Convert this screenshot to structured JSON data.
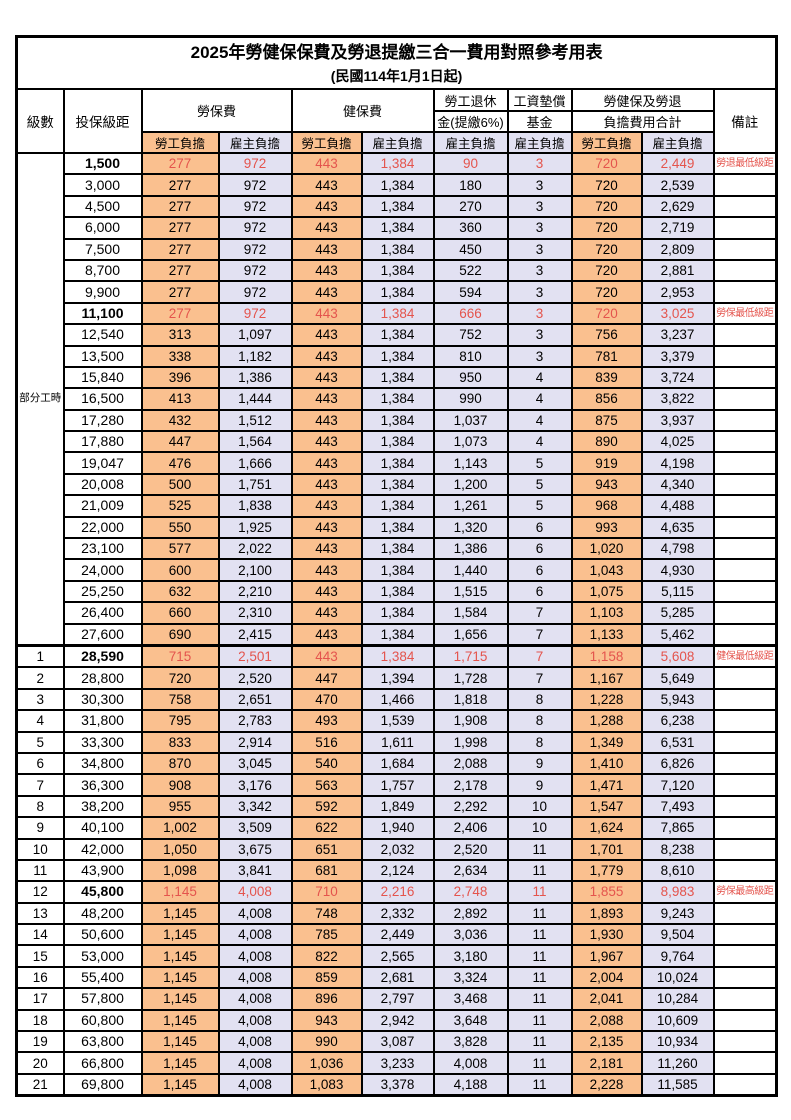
{
  "title": "2025年勞健保保費及勞退提繳三合一費用對照參考用表",
  "subtitle": "(民國114年1月1日起)",
  "colors": {
    "employee_bg": "#FAC08F",
    "employer_bg": "#E2E1F2",
    "highlight_text": "#E4544D",
    "border": "#000000"
  },
  "header": {
    "level": "級數",
    "salary": "投保級距",
    "labor_fee": "勞保費",
    "health_fee": "健保費",
    "pension_l1": "勞工退休",
    "pension_l2": "金(提繳6%)",
    "fund_l1": "工資墊償",
    "fund_l2": "基金",
    "total_l1": "勞健保及勞退",
    "total_l2": "負擔費用合計",
    "remark": "備註",
    "employee": "勞工負擔",
    "employer": "雇主負擔"
  },
  "part_time": {
    "label": "部分工時",
    "rowspan": 23
  },
  "rows": [
    {
      "level": "",
      "salary": "1,500",
      "li_emp": "277",
      "li_er": "972",
      "hi_emp": "443",
      "hi_er": "1,384",
      "pension": "90",
      "fund": "3",
      "tot_emp": "720",
      "tot_er": "2,449",
      "remark": "勞退最低級距",
      "red": true
    },
    {
      "level": "",
      "salary": "3,000",
      "li_emp": "277",
      "li_er": "972",
      "hi_emp": "443",
      "hi_er": "1,384",
      "pension": "180",
      "fund": "3",
      "tot_emp": "720",
      "tot_er": "2,539",
      "remark": "",
      "red": false
    },
    {
      "level": "",
      "salary": "4,500",
      "li_emp": "277",
      "li_er": "972",
      "hi_emp": "443",
      "hi_er": "1,384",
      "pension": "270",
      "fund": "3",
      "tot_emp": "720",
      "tot_er": "2,629",
      "remark": "",
      "red": false
    },
    {
      "level": "",
      "salary": "6,000",
      "li_emp": "277",
      "li_er": "972",
      "hi_emp": "443",
      "hi_er": "1,384",
      "pension": "360",
      "fund": "3",
      "tot_emp": "720",
      "tot_er": "2,719",
      "remark": "",
      "red": false
    },
    {
      "level": "",
      "salary": "7,500",
      "li_emp": "277",
      "li_er": "972",
      "hi_emp": "443",
      "hi_er": "1,384",
      "pension": "450",
      "fund": "3",
      "tot_emp": "720",
      "tot_er": "2,809",
      "remark": "",
      "red": false
    },
    {
      "level": "",
      "salary": "8,700",
      "li_emp": "277",
      "li_er": "972",
      "hi_emp": "443",
      "hi_er": "1,384",
      "pension": "522",
      "fund": "3",
      "tot_emp": "720",
      "tot_er": "2,881",
      "remark": "",
      "red": false
    },
    {
      "level": "",
      "salary": "9,900",
      "li_emp": "277",
      "li_er": "972",
      "hi_emp": "443",
      "hi_er": "1,384",
      "pension": "594",
      "fund": "3",
      "tot_emp": "720",
      "tot_er": "2,953",
      "remark": "",
      "red": false
    },
    {
      "level": "",
      "salary": "11,100",
      "li_emp": "277",
      "li_er": "972",
      "hi_emp": "443",
      "hi_er": "1,384",
      "pension": "666",
      "fund": "3",
      "tot_emp": "720",
      "tot_er": "3,025",
      "remark": "勞保最低級距",
      "red": true
    },
    {
      "level": "",
      "salary": "12,540",
      "li_emp": "313",
      "li_er": "1,097",
      "hi_emp": "443",
      "hi_er": "1,384",
      "pension": "752",
      "fund": "3",
      "tot_emp": "756",
      "tot_er": "3,237",
      "remark": "",
      "red": false
    },
    {
      "level": "",
      "salary": "13,500",
      "li_emp": "338",
      "li_er": "1,182",
      "hi_emp": "443",
      "hi_er": "1,384",
      "pension": "810",
      "fund": "3",
      "tot_emp": "781",
      "tot_er": "3,379",
      "remark": "",
      "red": false
    },
    {
      "level": "",
      "salary": "15,840",
      "li_emp": "396",
      "li_er": "1,386",
      "hi_emp": "443",
      "hi_er": "1,384",
      "pension": "950",
      "fund": "4",
      "tot_emp": "839",
      "tot_er": "3,724",
      "remark": "",
      "red": false
    },
    {
      "level": "",
      "salary": "16,500",
      "li_emp": "413",
      "li_er": "1,444",
      "hi_emp": "443",
      "hi_er": "1,384",
      "pension": "990",
      "fund": "4",
      "tot_emp": "856",
      "tot_er": "3,822",
      "remark": "",
      "red": false
    },
    {
      "level": "",
      "salary": "17,280",
      "li_emp": "432",
      "li_er": "1,512",
      "hi_emp": "443",
      "hi_er": "1,384",
      "pension": "1,037",
      "fund": "4",
      "tot_emp": "875",
      "tot_er": "3,937",
      "remark": "",
      "red": false
    },
    {
      "level": "",
      "salary": "17,880",
      "li_emp": "447",
      "li_er": "1,564",
      "hi_emp": "443",
      "hi_er": "1,384",
      "pension": "1,073",
      "fund": "4",
      "tot_emp": "890",
      "tot_er": "4,025",
      "remark": "",
      "red": false
    },
    {
      "level": "",
      "salary": "19,047",
      "li_emp": "476",
      "li_er": "1,666",
      "hi_emp": "443",
      "hi_er": "1,384",
      "pension": "1,143",
      "fund": "5",
      "tot_emp": "919",
      "tot_er": "4,198",
      "remark": "",
      "red": false
    },
    {
      "level": "",
      "salary": "20,008",
      "li_emp": "500",
      "li_er": "1,751",
      "hi_emp": "443",
      "hi_er": "1,384",
      "pension": "1,200",
      "fund": "5",
      "tot_emp": "943",
      "tot_er": "4,340",
      "remark": "",
      "red": false
    },
    {
      "level": "",
      "salary": "21,009",
      "li_emp": "525",
      "li_er": "1,838",
      "hi_emp": "443",
      "hi_er": "1,384",
      "pension": "1,261",
      "fund": "5",
      "tot_emp": "968",
      "tot_er": "4,488",
      "remark": "",
      "red": false
    },
    {
      "level": "",
      "salary": "22,000",
      "li_emp": "550",
      "li_er": "1,925",
      "hi_emp": "443",
      "hi_er": "1,384",
      "pension": "1,320",
      "fund": "6",
      "tot_emp": "993",
      "tot_er": "4,635",
      "remark": "",
      "red": false
    },
    {
      "level": "",
      "salary": "23,100",
      "li_emp": "577",
      "li_er": "2,022",
      "hi_emp": "443",
      "hi_er": "1,384",
      "pension": "1,386",
      "fund": "6",
      "tot_emp": "1,020",
      "tot_er": "4,798",
      "remark": "",
      "red": false
    },
    {
      "level": "",
      "salary": "24,000",
      "li_emp": "600",
      "li_er": "2,100",
      "hi_emp": "443",
      "hi_er": "1,384",
      "pension": "1,440",
      "fund": "6",
      "tot_emp": "1,043",
      "tot_er": "4,930",
      "remark": "",
      "red": false
    },
    {
      "level": "",
      "salary": "25,250",
      "li_emp": "632",
      "li_er": "2,210",
      "hi_emp": "443",
      "hi_er": "1,384",
      "pension": "1,515",
      "fund": "6",
      "tot_emp": "1,075",
      "tot_er": "5,115",
      "remark": "",
      "red": false
    },
    {
      "level": "",
      "salary": "26,400",
      "li_emp": "660",
      "li_er": "2,310",
      "hi_emp": "443",
      "hi_er": "1,384",
      "pension": "1,584",
      "fund": "7",
      "tot_emp": "1,103",
      "tot_er": "5,285",
      "remark": "",
      "red": false
    },
    {
      "level": "",
      "salary": "27,600",
      "li_emp": "690",
      "li_er": "2,415",
      "hi_emp": "443",
      "hi_er": "1,384",
      "pension": "1,656",
      "fund": "7",
      "tot_emp": "1,133",
      "tot_er": "5,462",
      "remark": "",
      "red": false
    },
    {
      "level": "1",
      "salary": "28,590",
      "li_emp": "715",
      "li_er": "2,501",
      "hi_emp": "443",
      "hi_er": "1,384",
      "pension": "1,715",
      "fund": "7",
      "tot_emp": "1,158",
      "tot_er": "5,608",
      "remark": "健保最低級距",
      "red": true,
      "sect": true
    },
    {
      "level": "2",
      "salary": "28,800",
      "li_emp": "720",
      "li_er": "2,520",
      "hi_emp": "447",
      "hi_er": "1,394",
      "pension": "1,728",
      "fund": "7",
      "tot_emp": "1,167",
      "tot_er": "5,649",
      "remark": "",
      "red": false
    },
    {
      "level": "3",
      "salary": "30,300",
      "li_emp": "758",
      "li_er": "2,651",
      "hi_emp": "470",
      "hi_er": "1,466",
      "pension": "1,818",
      "fund": "8",
      "tot_emp": "1,228",
      "tot_er": "5,943",
      "remark": "",
      "red": false
    },
    {
      "level": "4",
      "salary": "31,800",
      "li_emp": "795",
      "li_er": "2,783",
      "hi_emp": "493",
      "hi_er": "1,539",
      "pension": "1,908",
      "fund": "8",
      "tot_emp": "1,288",
      "tot_er": "6,238",
      "remark": "",
      "red": false
    },
    {
      "level": "5",
      "salary": "33,300",
      "li_emp": "833",
      "li_er": "2,914",
      "hi_emp": "516",
      "hi_er": "1,611",
      "pension": "1,998",
      "fund": "8",
      "tot_emp": "1,349",
      "tot_er": "6,531",
      "remark": "",
      "red": false
    },
    {
      "level": "6",
      "salary": "34,800",
      "li_emp": "870",
      "li_er": "3,045",
      "hi_emp": "540",
      "hi_er": "1,684",
      "pension": "2,088",
      "fund": "9",
      "tot_emp": "1,410",
      "tot_er": "6,826",
      "remark": "",
      "red": false
    },
    {
      "level": "7",
      "salary": "36,300",
      "li_emp": "908",
      "li_er": "3,176",
      "hi_emp": "563",
      "hi_er": "1,757",
      "pension": "2,178",
      "fund": "9",
      "tot_emp": "1,471",
      "tot_er": "7,120",
      "remark": "",
      "red": false
    },
    {
      "level": "8",
      "salary": "38,200",
      "li_emp": "955",
      "li_er": "3,342",
      "hi_emp": "592",
      "hi_er": "1,849",
      "pension": "2,292",
      "fund": "10",
      "tot_emp": "1,547",
      "tot_er": "7,493",
      "remark": "",
      "red": false
    },
    {
      "level": "9",
      "salary": "40,100",
      "li_emp": "1,002",
      "li_er": "3,509",
      "hi_emp": "622",
      "hi_er": "1,940",
      "pension": "2,406",
      "fund": "10",
      "tot_emp": "1,624",
      "tot_er": "7,865",
      "remark": "",
      "red": false
    },
    {
      "level": "10",
      "salary": "42,000",
      "li_emp": "1,050",
      "li_er": "3,675",
      "hi_emp": "651",
      "hi_er": "2,032",
      "pension": "2,520",
      "fund": "11",
      "tot_emp": "1,701",
      "tot_er": "8,238",
      "remark": "",
      "red": false
    },
    {
      "level": "11",
      "salary": "43,900",
      "li_emp": "1,098",
      "li_er": "3,841",
      "hi_emp": "681",
      "hi_er": "2,124",
      "pension": "2,634",
      "fund": "11",
      "tot_emp": "1,779",
      "tot_er": "8,610",
      "remark": "",
      "red": false
    },
    {
      "level": "12",
      "salary": "45,800",
      "li_emp": "1,145",
      "li_er": "4,008",
      "hi_emp": "710",
      "hi_er": "2,216",
      "pension": "2,748",
      "fund": "11",
      "tot_emp": "1,855",
      "tot_er": "8,983",
      "remark": "勞保最高級距",
      "red": true
    },
    {
      "level": "13",
      "salary": "48,200",
      "li_emp": "1,145",
      "li_er": "4,008",
      "hi_emp": "748",
      "hi_er": "2,332",
      "pension": "2,892",
      "fund": "11",
      "tot_emp": "1,893",
      "tot_er": "9,243",
      "remark": "",
      "red": false
    },
    {
      "level": "14",
      "salary": "50,600",
      "li_emp": "1,145",
      "li_er": "4,008",
      "hi_emp": "785",
      "hi_er": "2,449",
      "pension": "3,036",
      "fund": "11",
      "tot_emp": "1,930",
      "tot_er": "9,504",
      "remark": "",
      "red": false
    },
    {
      "level": "15",
      "salary": "53,000",
      "li_emp": "1,145",
      "li_er": "4,008",
      "hi_emp": "822",
      "hi_er": "2,565",
      "pension": "3,180",
      "fund": "11",
      "tot_emp": "1,967",
      "tot_er": "9,764",
      "remark": "",
      "red": false
    },
    {
      "level": "16",
      "salary": "55,400",
      "li_emp": "1,145",
      "li_er": "4,008",
      "hi_emp": "859",
      "hi_er": "2,681",
      "pension": "3,324",
      "fund": "11",
      "tot_emp": "2,004",
      "tot_er": "10,024",
      "remark": "",
      "red": false
    },
    {
      "level": "17",
      "salary": "57,800",
      "li_emp": "1,145",
      "li_er": "4,008",
      "hi_emp": "896",
      "hi_er": "2,797",
      "pension": "3,468",
      "fund": "11",
      "tot_emp": "2,041",
      "tot_er": "10,284",
      "remark": "",
      "red": false
    },
    {
      "level": "18",
      "salary": "60,800",
      "li_emp": "1,145",
      "li_er": "4,008",
      "hi_emp": "943",
      "hi_er": "2,942",
      "pension": "3,648",
      "fund": "11",
      "tot_emp": "2,088",
      "tot_er": "10,609",
      "remark": "",
      "red": false
    },
    {
      "level": "19",
      "salary": "63,800",
      "li_emp": "1,145",
      "li_er": "4,008",
      "hi_emp": "990",
      "hi_er": "3,087",
      "pension": "3,828",
      "fund": "11",
      "tot_emp": "2,135",
      "tot_er": "10,934",
      "remark": "",
      "red": false
    },
    {
      "level": "20",
      "salary": "66,800",
      "li_emp": "1,145",
      "li_er": "4,008",
      "hi_emp": "1,036",
      "hi_er": "3,233",
      "pension": "4,008",
      "fund": "11",
      "tot_emp": "2,181",
      "tot_er": "11,260",
      "remark": "",
      "red": false
    },
    {
      "level": "21",
      "salary": "69,800",
      "li_emp": "1,145",
      "li_er": "4,008",
      "hi_emp": "1,083",
      "hi_er": "3,378",
      "pension": "4,188",
      "fund": "11",
      "tot_emp": "2,228",
      "tot_er": "11,585",
      "remark": "",
      "red": false
    }
  ]
}
